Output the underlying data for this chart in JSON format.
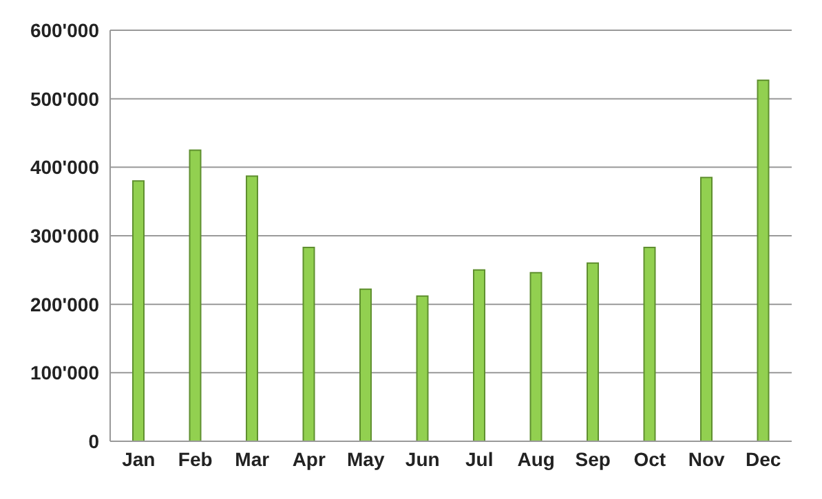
{
  "chart_data": {
    "type": "bar",
    "categories": [
      "Jan",
      "Feb",
      "Mar",
      "Apr",
      "May",
      "Jun",
      "Jul",
      "Aug",
      "Sep",
      "Oct",
      "Nov",
      "Dec"
    ],
    "values": [
      380000,
      425000,
      387000,
      283000,
      222000,
      212000,
      250000,
      246000,
      260000,
      283000,
      385000,
      527000
    ],
    "color": "#92d050",
    "ylim": [
      0,
      600000
    ],
    "yticks": [
      {
        "value": 0,
        "label": "0"
      },
      {
        "value": 100000,
        "label": "100'000"
      },
      {
        "value": 200000,
        "label": "200'000"
      },
      {
        "value": 300000,
        "label": "300'000"
      },
      {
        "value": 400000,
        "label": "400'000"
      },
      {
        "value": 500000,
        "label": "500'000"
      },
      {
        "value": 600000,
        "label": "600'000"
      }
    ],
    "grid": "y"
  }
}
